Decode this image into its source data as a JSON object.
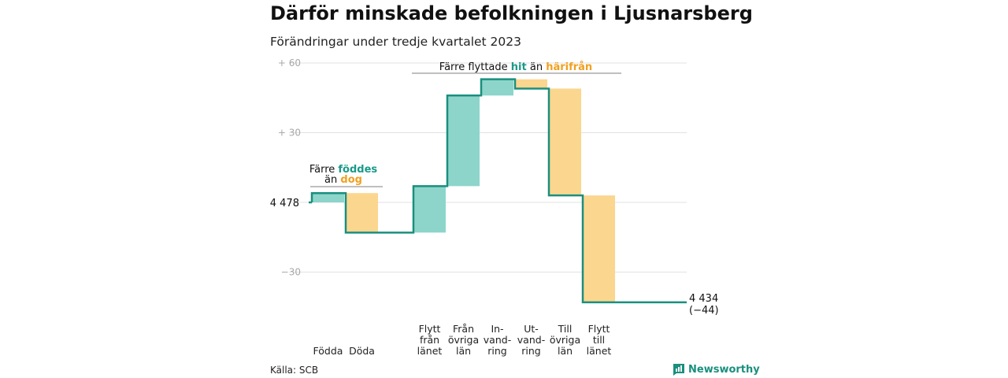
{
  "header": {
    "title": "Därför minskade befolkningen i Ljusnarsberg",
    "subtitle": "Förändringar under tredje kvartalet 2023"
  },
  "footer": {
    "source": "Källa: SCB",
    "brand": "Newsworthy"
  },
  "colors": {
    "increase": "#8dd5cb",
    "decrease": "#fbd68f",
    "line": "#1a8f7e",
    "teal_text": "#1a9a88",
    "orange_text": "#f0a020",
    "grid": "#e2e2e2"
  },
  "chart_data": {
    "type": "waterfall",
    "title": "Därför minskade befolkningen i Ljusnarsberg",
    "subtitle": "Förändringar under tredje kvartalet 2023",
    "start_value": 4478,
    "start_label": "4 478",
    "end_value": 4434,
    "end_label": "4 434",
    "end_change_label": "(−44)",
    "ylim": [
      -44,
      60
    ],
    "y_ticks": [
      {
        "value": 60,
        "label": "+ 60"
      },
      {
        "value": 30,
        "label": "+ 30"
      },
      {
        "value": 0,
        "label": ""
      },
      {
        "value": -30,
        "label": "−30"
      }
    ],
    "grid": true,
    "steps": [
      {
        "category": [
          "Födda"
        ],
        "value": 4,
        "direction": "increase"
      },
      {
        "category": [
          "Döda"
        ],
        "value": -17,
        "direction": "decrease"
      },
      {
        "category": [],
        "value": 0,
        "direction": "none"
      },
      {
        "category": [
          "Flytt",
          "från",
          "länet"
        ],
        "value": 20,
        "direction": "increase"
      },
      {
        "category": [
          "Från",
          "övriga",
          "län"
        ],
        "value": 39,
        "direction": "increase"
      },
      {
        "category": [
          "In-",
          "vand-",
          "ring"
        ],
        "value": 7,
        "direction": "increase"
      },
      {
        "category": [
          "Ut-",
          "vand-",
          "ring"
        ],
        "value": -4,
        "direction": "decrease"
      },
      {
        "category": [
          "Till",
          "övriga",
          "län"
        ],
        "value": -46,
        "direction": "decrease"
      },
      {
        "category": [
          "Flytt",
          "till",
          "länet"
        ],
        "value": -46,
        "direction": "decrease"
      },
      {
        "category": [],
        "value": 0,
        "direction": "none"
      }
    ],
    "annotations": [
      {
        "parts": [
          "Färre ",
          "föddes"
        ],
        "second_line": [
          "än ",
          "dog"
        ]
      },
      {
        "parts": [
          "Färre flyttade ",
          "hit",
          " än ",
          "härifrån"
        ]
      }
    ]
  }
}
